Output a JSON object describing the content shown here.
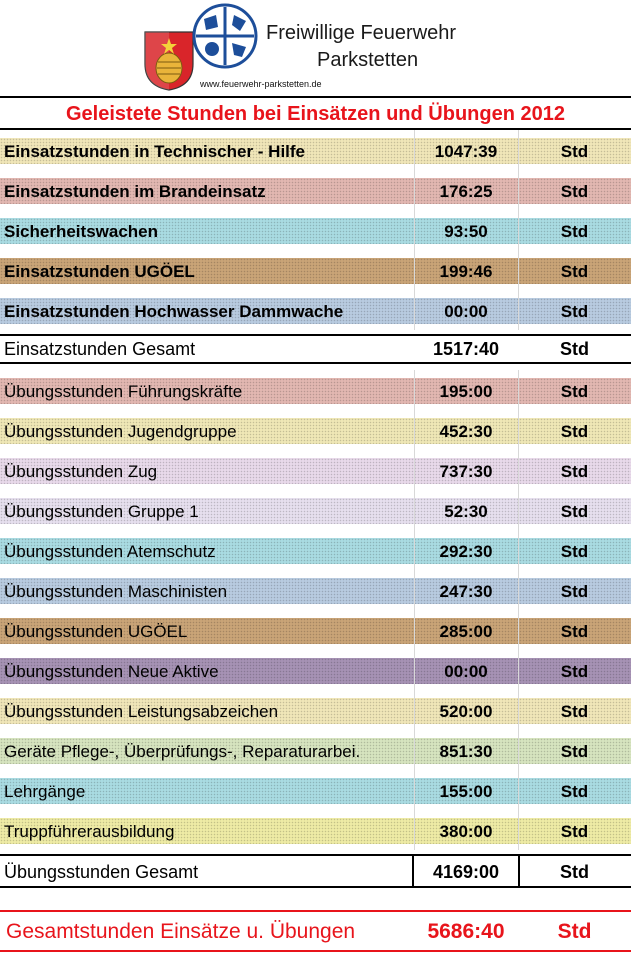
{
  "header": {
    "org_line1": "Freiwillige Feuerwehr",
    "org_line2": "Parkstetten",
    "website": "www.feuerwehr-parkstetten.de"
  },
  "title": "Geleistete Stunden bei Einsätzen und Übungen 2012",
  "rows": [
    {
      "label": "Einsatzstunden in Technischer - Hilfe",
      "value": "1047:39",
      "unit": "Std",
      "color": "#f0e6b8",
      "bold": true
    },
    {
      "label": "Einsatzstunden im Brandeinsatz",
      "value": "176:25",
      "unit": "Std",
      "color": "#e2b7b1",
      "bold": true
    },
    {
      "label": "Sicherheitswachen",
      "value": "93:50",
      "unit": "Std",
      "color": "#a9dbe2",
      "bold": true
    },
    {
      "label": "Einsatzstunden UGÖEL",
      "value": "199:46",
      "unit": "Std",
      "color": "#c9a477",
      "bold": true
    },
    {
      "label": "Einsatzstunden Hochwasser Dammwache",
      "value": "00:00",
      "unit": "Std",
      "color": "#b8cbe0",
      "bold": true
    },
    {
      "label": "Übungsstunden Führungskräfte",
      "value": "195:00",
      "unit": "Std",
      "color": "#e2b7b1",
      "bold": false
    },
    {
      "label": "Übungsstunden Jugendgruppe",
      "value": "452:30",
      "unit": "Std",
      "color": "#efe7b6",
      "bold": false
    },
    {
      "label": "Übungsstunden Zug",
      "value": "737:30",
      "unit": "Std",
      "color": "#e8d9ea",
      "bold": false
    },
    {
      "label": "Übungsstunden Gruppe 1",
      "value": "52:30",
      "unit": "Std",
      "color": "#e6dfee",
      "bold": false
    },
    {
      "label": "Übungsstunden Atemschutz",
      "value": "292:30",
      "unit": "Std",
      "color": "#a9dbe2",
      "bold": false
    },
    {
      "label": "Übungsstunden Maschinisten",
      "value": "247:30",
      "unit": "Std",
      "color": "#b8cbe0",
      "bold": false
    },
    {
      "label": "Übungsstunden UGÖEL",
      "value": "285:00",
      "unit": "Std",
      "color": "#c9a477",
      "bold": false
    },
    {
      "label": "Übungsstunden Neue Aktive",
      "value": "00:00",
      "unit": "Std",
      "color": "#a692b4",
      "bold": false
    },
    {
      "label": "Übungsstunden Leistungsabzeichen",
      "value": "520:00",
      "unit": "Std",
      "color": "#f0e6b8",
      "bold": false
    },
    {
      "label": "Geräte Pflege-, Überprüfungs-, Reparaturarbei.",
      "value": "851:30",
      "unit": "Std",
      "color": "#d6e4bf",
      "bold": false
    },
    {
      "label": "Lehrgänge",
      "value": "155:00",
      "unit": "Std",
      "color": "#a9dbe2",
      "bold": false
    },
    {
      "label": "Truppführerausbildung",
      "value": "380:00",
      "unit": "Std",
      "color": "#eeeba5",
      "bold": false
    }
  ],
  "einsatz_total": {
    "label": "Einsatzstunden  Gesamt",
    "value": "1517:40",
    "unit": "Std"
  },
  "uebung_total": {
    "label": "Übungsstunden Gesamt",
    "value": "4169:00",
    "unit": "Std"
  },
  "grand_total": {
    "label": "Gesamtstunden Einsätze u. Übungen",
    "value": "5686:40",
    "unit": "Std"
  }
}
